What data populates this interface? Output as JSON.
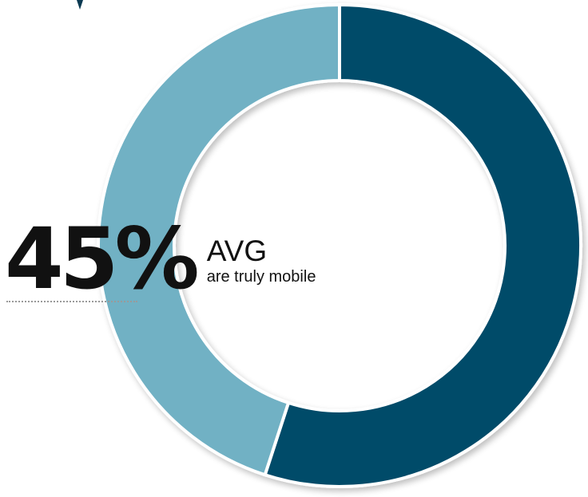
{
  "callout": {
    "value": "45%",
    "label": "AVG",
    "sublabel": "are truly mobile"
  },
  "chart_data": {
    "type": "pie",
    "style": "donut",
    "title": "",
    "series": [
      {
        "values": [
          55,
          45
        ]
      }
    ],
    "slice_colors": [
      "#054c69",
      "#71b1c4"
    ],
    "start_angle": "12 o'clock",
    "direction": "clockwise"
  },
  "colors": {
    "dark_slice": "#054c69",
    "light_slice": "#71b1c4",
    "text": "#111111",
    "accent_swoosh": "#0b3a52"
  }
}
